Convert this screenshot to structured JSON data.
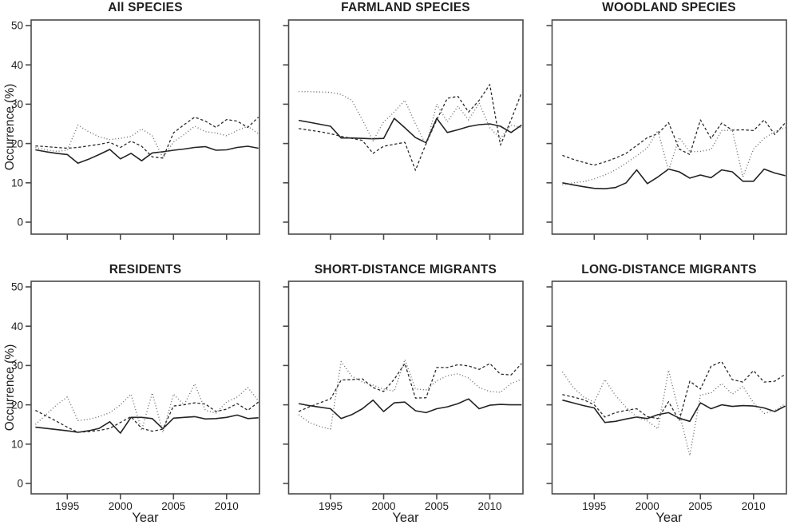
{
  "figure": {
    "y_axis_label": "Occurrence (%)",
    "x_axis_label": "Year",
    "y_ticks": [
      0,
      10,
      20,
      30,
      40,
      50
    ],
    "x_ticks": [
      1995,
      2000,
      2005,
      2010
    ],
    "box_color": "#4a4a4a",
    "solid_color": "#232323",
    "dashed_color": "#2a2a2a",
    "dotted_color": "#707070"
  },
  "chart_data": [
    {
      "type": "line",
      "title": "All SPECIES",
      "xlabel": "Year",
      "ylabel": "Occurrence (%)",
      "ylim": [
        0,
        50
      ],
      "grid": false,
      "legend": "none",
      "x": [
        1992,
        1993,
        1994,
        1995,
        1996,
        1997,
        1998,
        1999,
        2000,
        2001,
        2002,
        2003,
        2004,
        2005,
        2006,
        2007,
        2008,
        2009,
        2010,
        2011,
        2012,
        2013
      ],
      "series": [
        {
          "name": "solid",
          "values": [
            18.4,
            17.9,
            17.5,
            17.2,
            15.0,
            16.0,
            17.2,
            18.5,
            16.1,
            17.5,
            15.6,
            17.6,
            17.9,
            18.3,
            18.6,
            19.0,
            19.2,
            18.3,
            18.4,
            19.0,
            19.3,
            18.8
          ]
        },
        {
          "name": "dashed",
          "values": [
            19.4,
            19.2,
            19.0,
            18.8,
            19.0,
            19.4,
            19.8,
            20.3,
            19.0,
            20.6,
            19.3,
            16.6,
            16.3,
            22.7,
            24.8,
            26.7,
            25.7,
            24.1,
            26.1,
            25.7,
            24.1,
            26.7
          ]
        },
        {
          "name": "dotted",
          "values": [
            19.0,
            18.4,
            18.0,
            18.3,
            24.7,
            23.0,
            21.7,
            21.0,
            21.3,
            21.8,
            23.7,
            22.0,
            16.3,
            20.4,
            22.3,
            24.4,
            23.0,
            22.7,
            22.0,
            23.3,
            24.4,
            22.5
          ]
        }
      ]
    },
    {
      "type": "line",
      "title": "FARMLAND SPECIES",
      "xlabel": "Year",
      "ylabel": "Occurrence (%)",
      "ylim": [
        0,
        50
      ],
      "grid": false,
      "legend": "none",
      "x": [
        1992,
        1993,
        1994,
        1995,
        1996,
        1997,
        1998,
        1999,
        2000,
        2001,
        2002,
        2003,
        2004,
        2005,
        2006,
        2007,
        2008,
        2009,
        2010,
        2011,
        2012,
        2013
      ],
      "series": [
        {
          "name": "solid",
          "values": [
            25.9,
            25.4,
            24.9,
            24.4,
            21.4,
            21.4,
            21.3,
            21.2,
            21.3,
            26.4,
            24.0,
            21.5,
            20.2,
            26.4,
            22.8,
            23.5,
            24.3,
            24.8,
            25.0,
            24.4,
            22.8,
            24.7
          ]
        },
        {
          "name": "dashed",
          "values": [
            23.8,
            23.4,
            23.0,
            22.5,
            21.8,
            21.3,
            20.8,
            17.5,
            19.3,
            19.8,
            20.3,
            13.2,
            20.0,
            26.0,
            31.5,
            32.0,
            28.0,
            31.0,
            35.0,
            19.6,
            26.0,
            33.0
          ]
        },
        {
          "name": "dotted",
          "values": [
            33.2,
            33.2,
            33.1,
            33.0,
            32.5,
            31.0,
            26.0,
            20.7,
            25.5,
            28.0,
            31.0,
            25.0,
            19.5,
            30.0,
            25.5,
            29.5,
            26.0,
            30.3,
            24.0,
            21.3,
            24.7,
            24.0
          ]
        }
      ]
    },
    {
      "type": "line",
      "title": "WOODLAND SPECIES",
      "xlabel": "Year",
      "ylabel": "Occurrence (%)",
      "ylim": [
        0,
        50
      ],
      "grid": false,
      "legend": "none",
      "x": [
        1992,
        1993,
        1994,
        1995,
        1996,
        1997,
        1998,
        1999,
        2000,
        2001,
        2002,
        2003,
        2004,
        2005,
        2006,
        2007,
        2008,
        2009,
        2010,
        2011,
        2012,
        2013
      ],
      "series": [
        {
          "name": "solid",
          "values": [
            10.0,
            9.5,
            9.0,
            8.6,
            8.5,
            8.8,
            10.0,
            13.3,
            9.8,
            11.5,
            13.5,
            12.8,
            11.2,
            12.0,
            11.3,
            13.3,
            12.8,
            10.4,
            10.4,
            13.5,
            12.5,
            11.8
          ]
        },
        {
          "name": "dashed",
          "values": [
            17.0,
            16.0,
            15.2,
            14.5,
            15.3,
            16.3,
            17.5,
            19.5,
            21.5,
            22.5,
            25.3,
            18.6,
            17.2,
            26.0,
            21.3,
            25.2,
            23.4,
            23.5,
            23.3,
            26.0,
            22.3,
            25.3
          ]
        },
        {
          "name": "dotted",
          "values": [
            9.5,
            10.0,
            10.3,
            11.0,
            12.0,
            13.3,
            15.0,
            16.9,
            18.9,
            23.3,
            13.1,
            21.5,
            17.9,
            18.0,
            18.5,
            23.3,
            23.4,
            11.5,
            18.6,
            21.3,
            23.0,
            24.0
          ]
        }
      ]
    },
    {
      "type": "line",
      "title": "RESIDENTS",
      "xlabel": "Year",
      "ylabel": "Occurrence (%)",
      "ylim": [
        0,
        50
      ],
      "grid": false,
      "legend": "none",
      "x": [
        1992,
        1993,
        1994,
        1995,
        1996,
        1997,
        1998,
        1999,
        2000,
        2001,
        2002,
        2003,
        2004,
        2005,
        2006,
        2007,
        2008,
        2009,
        2010,
        2011,
        2012,
        2013
      ],
      "series": [
        {
          "name": "solid",
          "values": [
            14.3,
            14.0,
            13.7,
            13.4,
            13.0,
            13.4,
            14.0,
            15.7,
            12.8,
            16.8,
            16.8,
            16.5,
            13.9,
            16.6,
            16.8,
            17.0,
            16.4,
            16.5,
            16.8,
            17.4,
            16.5,
            16.7
          ]
        },
        {
          "name": "dashed",
          "values": [
            18.6,
            17.2,
            15.8,
            14.3,
            13.0,
            13.2,
            13.5,
            14.0,
            15.5,
            17.0,
            14.0,
            13.3,
            13.8,
            19.7,
            20.0,
            20.5,
            20.2,
            18.3,
            18.9,
            20.3,
            18.6,
            20.7
          ]
        },
        {
          "name": "dotted",
          "values": [
            15.0,
            17.5,
            20.0,
            22.0,
            16.0,
            16.3,
            17.0,
            18.0,
            20.0,
            22.7,
            13.5,
            23.0,
            13.0,
            22.7,
            20.0,
            25.3,
            18.6,
            17.9,
            20.7,
            22.0,
            24.4,
            21.0
          ]
        }
      ]
    },
    {
      "type": "line",
      "title": "SHORT-DISTANCE MIGRANTS",
      "xlabel": "Year",
      "ylabel": "Occurrence (%)",
      "ylim": [
        0,
        50
      ],
      "grid": false,
      "legend": "none",
      "x": [
        1992,
        1993,
        1994,
        1995,
        1996,
        1997,
        1998,
        1999,
        2000,
        2001,
        2002,
        2003,
        2004,
        2005,
        2006,
        2007,
        2008,
        2009,
        2010,
        2011,
        2012,
        2013
      ],
      "series": [
        {
          "name": "solid",
          "values": [
            20.3,
            19.8,
            19.4,
            19.0,
            16.5,
            17.5,
            19.0,
            21.2,
            18.3,
            20.5,
            20.7,
            18.5,
            18.0,
            19.0,
            19.5,
            20.3,
            21.5,
            19.0,
            19.9,
            20.1,
            20.0,
            20.0
          ]
        },
        {
          "name": "dashed",
          "values": [
            18.3,
            19.5,
            20.5,
            21.5,
            26.3,
            26.4,
            26.6,
            24.4,
            23.4,
            26.5,
            30.5,
            21.7,
            21.8,
            29.5,
            29.5,
            30.2,
            29.9,
            29.0,
            30.5,
            27.8,
            27.6,
            30.5
          ]
        },
        {
          "name": "dotted",
          "values": [
            17.5,
            15.5,
            14.5,
            13.8,
            31.0,
            27.3,
            25.8,
            25.0,
            24.0,
            23.5,
            31.5,
            24.0,
            23.8,
            26.1,
            27.4,
            27.9,
            26.8,
            24.4,
            23.4,
            23.2,
            25.4,
            26.5
          ]
        }
      ]
    },
    {
      "type": "line",
      "title": "LONG-DISTANCE MIGRANTS",
      "xlabel": "Year",
      "ylabel": "Occurrence (%)",
      "ylim": [
        0,
        50
      ],
      "grid": false,
      "legend": "none",
      "x": [
        1992,
        1993,
        1994,
        1995,
        1996,
        1997,
        1998,
        1999,
        2000,
        2001,
        2002,
        2003,
        2004,
        2005,
        2006,
        2007,
        2008,
        2009,
        2010,
        2011,
        2012,
        2013
      ],
      "series": [
        {
          "name": "solid",
          "values": [
            21.2,
            20.5,
            19.8,
            19.2,
            15.5,
            15.8,
            16.4,
            16.9,
            16.5,
            17.5,
            18.0,
            16.6,
            15.8,
            20.5,
            19.0,
            20.0,
            19.6,
            19.8,
            19.7,
            19.2,
            18.3,
            19.7
          ]
        },
        {
          "name": "dashed",
          "values": [
            22.6,
            22.0,
            21.3,
            20.0,
            16.9,
            18.0,
            18.6,
            19.0,
            17.0,
            16.5,
            20.8,
            16.0,
            26.0,
            24.0,
            29.8,
            31.0,
            26.4,
            25.8,
            28.7,
            25.8,
            26.0,
            27.8
          ]
        },
        {
          "name": "dotted",
          "values": [
            28.4,
            24.5,
            22.0,
            20.7,
            26.4,
            22.4,
            19.3,
            16.9,
            15.9,
            13.9,
            28.8,
            18.0,
            7.1,
            22.5,
            23.0,
            25.4,
            22.7,
            24.7,
            20.5,
            17.8,
            18.5,
            20.3
          ]
        }
      ]
    }
  ]
}
